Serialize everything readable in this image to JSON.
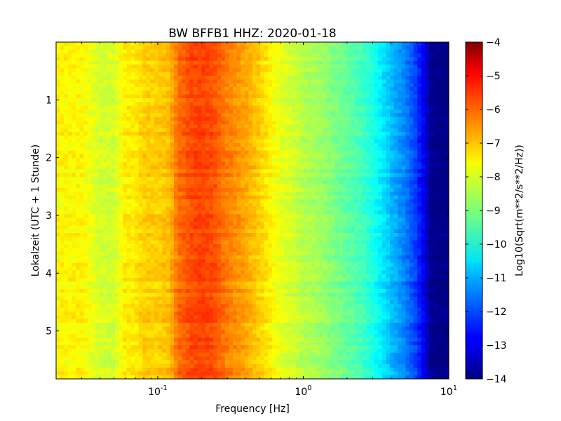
{
  "chart_data": {
    "type": "heatmap",
    "title": "BW BFFB1 HHZ: 2020-01-18",
    "xlabel": "Frequency [Hz]",
    "ylabel": "Lokalzeit (UTC + 1 Stunde)",
    "x_scale": "log",
    "xlim": [
      0.02,
      10
    ],
    "x_ticks": [
      {
        "value": 0.1,
        "base": "10",
        "exp": "-1"
      },
      {
        "value": 1,
        "base": "10",
        "exp": "0"
      },
      {
        "value": 10,
        "base": "10",
        "exp": "1"
      }
    ],
    "ylim": [
      0,
      5.83
    ],
    "y_inverted": true,
    "y_ticks": [
      {
        "value": 1,
        "label": "1"
      },
      {
        "value": 2,
        "label": "2"
      },
      {
        "value": 3,
        "label": "3"
      },
      {
        "value": 4,
        "label": "4"
      },
      {
        "value": 5,
        "label": "5"
      }
    ],
    "colorbar": {
      "label": "Log10(Sqrt(m**2/s**2/Hz))",
      "range": [
        -14,
        -4
      ],
      "colormap": "jet",
      "ticks": [
        {
          "value": -4,
          "label": "−4"
        },
        {
          "value": -5,
          "label": "−5"
        },
        {
          "value": -6,
          "label": "−6"
        },
        {
          "value": -7,
          "label": "−7"
        },
        {
          "value": -8,
          "label": "−8"
        },
        {
          "value": -9,
          "label": "−9"
        },
        {
          "value": -10,
          "label": "−10"
        },
        {
          "value": -11,
          "label": "−11"
        },
        {
          "value": -12,
          "label": "−12"
        },
        {
          "value": -13,
          "label": "−13"
        },
        {
          "value": -14,
          "label": "−14"
        }
      ]
    },
    "spectrum_profile": {
      "frequencies": [
        0.02,
        0.03,
        0.04,
        0.05,
        0.06,
        0.07,
        0.08,
        0.1,
        0.12,
        0.14,
        0.17,
        0.2,
        0.24,
        0.3,
        0.35,
        0.4,
        0.5,
        0.6,
        0.7,
        0.85,
        1.0,
        1.2,
        1.5,
        2.0,
        2.5,
        3.0,
        3.5,
        4.0,
        5.0,
        6.0,
        7.0,
        7.5,
        10.0
      ],
      "values": [
        -7.7,
        -7.7,
        -8.2,
        -8.2,
        -7.6,
        -7.6,
        -7.3,
        -7.3,
        -7.1,
        -6.3,
        -6.0,
        -5.9,
        -6.0,
        -6.5,
        -6.7,
        -6.9,
        -7.3,
        -7.7,
        -8.0,
        -8.2,
        -8.5,
        -8.6,
        -8.9,
        -9.3,
        -9.6,
        -10.0,
        -10.5,
        -10.9,
        -11.5,
        -12.2,
        -13.2,
        -13.9,
        -14.0
      ]
    }
  }
}
